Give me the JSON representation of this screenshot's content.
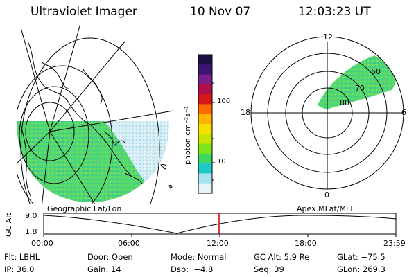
{
  "header": {
    "title": "Ultraviolet Imager",
    "date": "10 Nov 07",
    "time": "12:03:23 UT"
  },
  "colorbar": {
    "unit_label": "photon cm⁻²s⁻¹",
    "ticks": [
      "100",
      "10"
    ],
    "colors": [
      "#1c1040",
      "#3a1670",
      "#7a1f8a",
      "#b0104a",
      "#d81818",
      "#ff6a00",
      "#ffb400",
      "#f6e000",
      "#c8e400",
      "#7ce61a",
      "#3ed860",
      "#1ec8c8",
      "#a8e4f0",
      "#e6f4f8"
    ]
  },
  "geo_panel": {
    "label": "Geographic Lat/Lon"
  },
  "polar_panel": {
    "label": "Apex  MLat/MLT",
    "hour_labels": {
      "top": "12",
      "left": "18",
      "right": "6",
      "bottom": "0"
    },
    "lat_labels": [
      "60",
      "70",
      "80"
    ]
  },
  "altitude_plot": {
    "ylabel": "GC Alt",
    "yticks": [
      "9.0",
      "1.8"
    ],
    "xticks": [
      "00:00",
      "06:00",
      "12:00",
      "18:00",
      "23:59"
    ],
    "marker_time": "12:03:23",
    "marker_color": "#cc0000"
  },
  "info": {
    "row1": [
      {
        "key": "Flt:",
        "value": "LBHL"
      },
      {
        "key": "Door:",
        "value": "Open"
      },
      {
        "key": "Mode:",
        "value": "Normal"
      },
      {
        "key": "GC Alt:",
        "value": "5.9 Re"
      },
      {
        "key": "GLat:",
        "value": "−75.5"
      }
    ],
    "row2": [
      {
        "key": "IP:",
        "value": "36.0"
      },
      {
        "key": "Gain:",
        "value": "14"
      },
      {
        "key": "Dsp:",
        "value": "−4.8"
      },
      {
        "key": "Seq:",
        "value": "39"
      },
      {
        "key": "GLon:",
        "value": "269.3"
      }
    ]
  }
}
